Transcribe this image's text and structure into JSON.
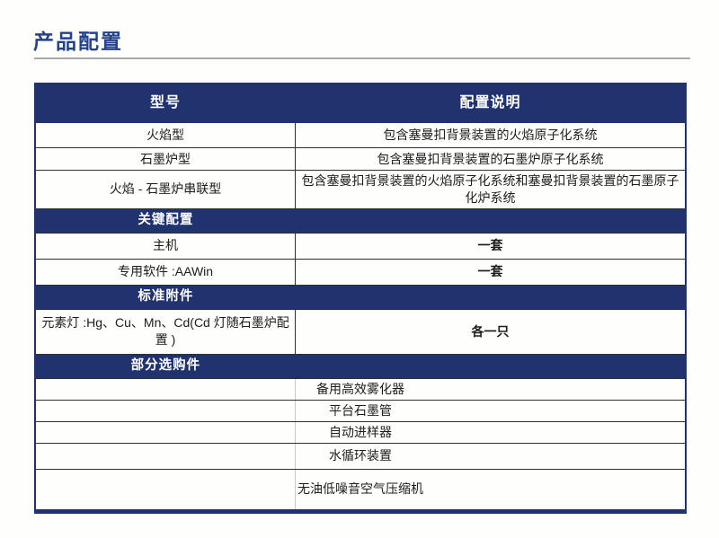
{
  "page": {
    "title": "产品配置"
  },
  "colors": {
    "navy": "#20336e",
    "title_navy": "#24418c",
    "row_border": "#2e2e2e",
    "title_rule_gray": "#a9a9a9"
  },
  "table": {
    "columns": [
      "型号",
      "配置说明"
    ],
    "model_rows": [
      {
        "model": "火焰型",
        "description": "包含塞曼扣背景装置的火焰原子化系统"
      },
      {
        "model": "石墨炉型",
        "description": "包含塞曼扣背景装置的石墨炉原子化系统"
      },
      {
        "model": "火焰 - 石墨炉串联型",
        "description": "包含塞曼扣背景装置的火焰原子化系统和塞曼扣背景装置的石墨原子化炉系统"
      }
    ],
    "sections": [
      {
        "header": "关键配置",
        "rows": [
          {
            "label": "主机",
            "value": "一套"
          },
          {
            "label": "专用软件 :AAWin",
            "value": "一套"
          }
        ]
      },
      {
        "header": "标准附件",
        "rows": [
          {
            "label": "元素灯 :Hg、Cu、Mn、Cd(Cd 灯随石墨炉配置 )",
            "value": "各一只"
          }
        ]
      },
      {
        "header": "部分选购件",
        "full_rows": [
          "备用高效雾化器",
          "平台石墨管",
          "自动进样器",
          "水循环装置",
          "无油低噪音空气压缩机"
        ]
      }
    ]
  }
}
